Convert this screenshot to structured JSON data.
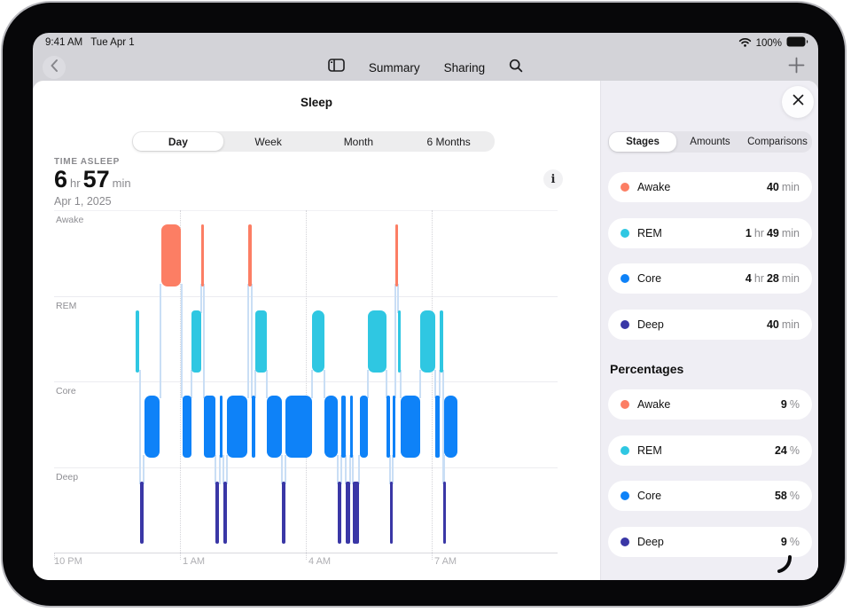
{
  "status_bar": {
    "time": "9:41 AM",
    "date": "Tue Apr 1",
    "battery_percent": "100%"
  },
  "nav": {
    "summary_label": "Summary",
    "sharing_label": "Sharing"
  },
  "sheet": {
    "title": "Sleep"
  },
  "time_range_tabs": {
    "options": [
      "Day",
      "Week",
      "Month",
      "6 Months"
    ],
    "selected": "Day"
  },
  "metric": {
    "label": "TIME ASLEEP",
    "value_parts": [
      {
        "text": "6",
        "muted": false
      },
      {
        "text": "hr",
        "muted": true
      },
      {
        "text": "57",
        "muted": false
      },
      {
        "text": "min",
        "muted": true
      }
    ],
    "date": "Apr 1, 2025",
    "info_glyph": "i"
  },
  "sidebar": {
    "tabs": {
      "options": [
        "Stages",
        "Amounts",
        "Comparisons"
      ],
      "selected": "Stages"
    },
    "stages": [
      {
        "name": "Awake",
        "color": "#FC7E64",
        "duration_parts": [
          {
            "text": "40",
            "muted": false
          },
          {
            "text": "min",
            "muted": true
          }
        ]
      },
      {
        "name": "REM",
        "color": "#2FC7E2",
        "duration_parts": [
          {
            "text": "1",
            "muted": false
          },
          {
            "text": "hr",
            "muted": true
          },
          {
            "text": "49",
            "muted": false
          },
          {
            "text": "min",
            "muted": true
          }
        ]
      },
      {
        "name": "Core",
        "color": "#0E82F8",
        "duration_parts": [
          {
            "text": "4",
            "muted": false
          },
          {
            "text": "hr",
            "muted": true
          },
          {
            "text": "28",
            "muted": false
          },
          {
            "text": "min",
            "muted": true
          }
        ]
      },
      {
        "name": "Deep",
        "color": "#3A37A6",
        "duration_parts": [
          {
            "text": "40",
            "muted": false
          },
          {
            "text": "min",
            "muted": true
          }
        ]
      }
    ],
    "percentages_header": "Percentages",
    "percentages": [
      {
        "name": "Awake",
        "color": "#FC7E64",
        "value": "9",
        "unit": "%"
      },
      {
        "name": "REM",
        "color": "#2FC7E2",
        "value": "24",
        "unit": "%"
      },
      {
        "name": "Core",
        "color": "#0E82F8",
        "value": "58",
        "unit": "%"
      },
      {
        "name": "Deep",
        "color": "#3A37A6",
        "value": "9",
        "unit": "%"
      }
    ]
  },
  "chart_data": {
    "type": "timeline",
    "title": "Sleep stages hypnogram, night of Apr 1, 2025",
    "rows": [
      "Awake",
      "REM",
      "Core",
      "Deep"
    ],
    "row_colors": {
      "Awake": "#FC7E64",
      "REM": "#2FC7E2",
      "Core": "#0E82F8",
      "Deep": "#3A37A6"
    },
    "connector_color": "#C9DEF5",
    "x_axis": {
      "clock_start": "22:00",
      "clock_end": "10:00",
      "domain_hours": 12,
      "ticks": [
        {
          "label": "10 PM",
          "hour": 0,
          "grid": false
        },
        {
          "label": "1 AM",
          "hour": 3,
          "grid": true
        },
        {
          "label": "4 AM",
          "hour": 6,
          "grid": true
        },
        {
          "label": "7 AM",
          "hour": 9,
          "grid": true
        }
      ]
    },
    "segment_time_unit": "hours_after_10pm",
    "segments": [
      {
        "stage": "REM",
        "start": 1.95,
        "end": 2.03
      },
      {
        "stage": "Deep",
        "start": 2.05,
        "end": 2.13
      },
      {
        "stage": "Core",
        "start": 2.15,
        "end": 2.51
      },
      {
        "stage": "Awake",
        "start": 2.55,
        "end": 3.03
      },
      {
        "stage": "Core",
        "start": 3.06,
        "end": 3.28
      },
      {
        "stage": "REM",
        "start": 3.28,
        "end": 3.5
      },
      {
        "stage": "Awake",
        "start": 3.51,
        "end": 3.56
      },
      {
        "stage": "Core",
        "start": 3.57,
        "end": 3.85
      },
      {
        "stage": "Deep",
        "start": 3.85,
        "end": 3.94
      },
      {
        "stage": "Core",
        "start": 3.96,
        "end": 4.02
      },
      {
        "stage": "Deep",
        "start": 4.03,
        "end": 4.11
      },
      {
        "stage": "Core",
        "start": 4.13,
        "end": 4.61
      },
      {
        "stage": "Awake",
        "start": 4.63,
        "end": 4.71
      },
      {
        "stage": "Core",
        "start": 4.72,
        "end": 4.8
      },
      {
        "stage": "REM",
        "start": 4.8,
        "end": 5.08
      },
      {
        "stage": "Core",
        "start": 5.08,
        "end": 5.42
      },
      {
        "stage": "Deep",
        "start": 5.42,
        "end": 5.52
      },
      {
        "stage": "Core",
        "start": 5.52,
        "end": 6.14
      },
      {
        "stage": "REM",
        "start": 6.14,
        "end": 6.45
      },
      {
        "stage": "Core",
        "start": 6.45,
        "end": 6.76
      },
      {
        "stage": "Deep",
        "start": 6.77,
        "end": 6.84
      },
      {
        "stage": "Core",
        "start": 6.85,
        "end": 6.95
      },
      {
        "stage": "Deep",
        "start": 6.95,
        "end": 7.06
      },
      {
        "stage": "Core",
        "start": 7.06,
        "end": 7.12
      },
      {
        "stage": "Deep",
        "start": 7.13,
        "end": 7.27
      },
      {
        "stage": "Core",
        "start": 7.28,
        "end": 7.47
      },
      {
        "stage": "REM",
        "start": 7.47,
        "end": 7.93
      },
      {
        "stage": "Core",
        "start": 7.93,
        "end": 8.0
      },
      {
        "stage": "Deep",
        "start": 8.0,
        "end": 8.06
      },
      {
        "stage": "Core",
        "start": 8.06,
        "end": 8.12
      },
      {
        "stage": "Awake",
        "start": 8.13,
        "end": 8.19
      },
      {
        "stage": "REM",
        "start": 8.2,
        "end": 8.27
      },
      {
        "stage": "Core",
        "start": 8.27,
        "end": 8.72
      },
      {
        "stage": "REM",
        "start": 8.72,
        "end": 9.08
      },
      {
        "stage": "Core",
        "start": 9.08,
        "end": 9.19
      },
      {
        "stage": "REM",
        "start": 9.19,
        "end": 9.27
      },
      {
        "stage": "Deep",
        "start": 9.27,
        "end": 9.3
      },
      {
        "stage": "Core",
        "start": 9.3,
        "end": 9.61
      }
    ],
    "totals": {
      "Awake": "40 min",
      "REM": "1 hr 49 min",
      "Core": "4 hr 28 min",
      "Deep": "40 min"
    },
    "time_asleep": "6 hr 57 min"
  }
}
